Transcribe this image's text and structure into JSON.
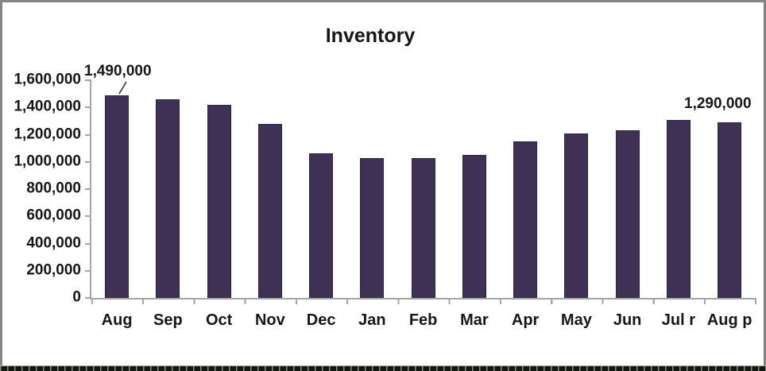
{
  "chart_data": {
    "type": "bar",
    "title": "Inventory",
    "categories": [
      "Aug",
      "Sep",
      "Oct",
      "Nov",
      "Dec",
      "Jan",
      "Feb",
      "Mar",
      "Apr",
      "May",
      "Jun",
      "Jul r",
      "Aug p"
    ],
    "values": [
      1490000,
      1460000,
      1420000,
      1280000,
      1060000,
      1030000,
      1030000,
      1050000,
      1150000,
      1210000,
      1230000,
      1310000,
      1290000
    ],
    "ylim": [
      0,
      1600000
    ],
    "ytick_interval": 200000,
    "ytick_labels": [
      "1,600,000",
      "1,400,000",
      "1,200,000",
      "1,000,000",
      "800,000",
      "600,000",
      "400,000",
      "200,000",
      "0"
    ],
    "xlabel": "",
    "ylabel": "",
    "grid": false,
    "legend_position": "none",
    "bar_color": "#3f3156",
    "bar_border_color": "#2d2342",
    "axis_color": "#a6a6a6",
    "text_color": "#171717",
    "annotations": [
      {
        "text": "1,490,000",
        "target": "Aug",
        "leader_line": true
      },
      {
        "text": "1,290,000",
        "target": "Aug p",
        "leader_line": false
      }
    ]
  }
}
